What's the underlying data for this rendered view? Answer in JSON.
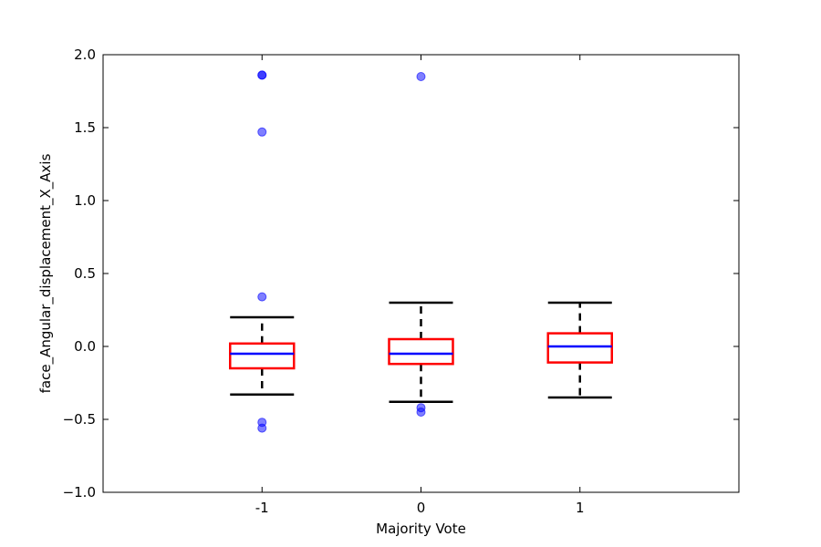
{
  "chart_data": {
    "type": "box",
    "title": "",
    "xlabel": "Majority Vote",
    "ylabel": "face_Angular_displacement_X_Axis",
    "ylim": [
      -1.0,
      2.0
    ],
    "yticks": [
      -1.0,
      -0.5,
      0.0,
      0.5,
      1.0,
      1.5,
      2.0
    ],
    "ytick_labels": [
      "−1.0",
      "−0.5",
      "0.0",
      "0.5",
      "1.0",
      "1.5",
      "2.0"
    ],
    "categories": [
      "-1",
      "0",
      "1"
    ],
    "grid": false,
    "colors": {
      "box": "#ff0000",
      "median": "#0000ff",
      "whisker": "#000000",
      "outlier": "#0000ff"
    },
    "boxes": [
      {
        "category": "-1",
        "whisker_low": -0.33,
        "q1": -0.15,
        "median": -0.05,
        "q3": 0.02,
        "whisker_high": 0.2,
        "outliers": [
          1.86,
          1.86,
          1.47,
          0.34,
          -0.52,
          -0.56
        ]
      },
      {
        "category": "0",
        "whisker_low": -0.38,
        "q1": -0.12,
        "median": -0.05,
        "q3": 0.05,
        "whisker_high": 0.3,
        "outliers": [
          1.85,
          -0.42,
          -0.45
        ]
      },
      {
        "category": "1",
        "whisker_low": -0.35,
        "q1": -0.11,
        "median": 0.0,
        "q3": 0.09,
        "whisker_high": 0.3,
        "outliers": []
      }
    ]
  }
}
